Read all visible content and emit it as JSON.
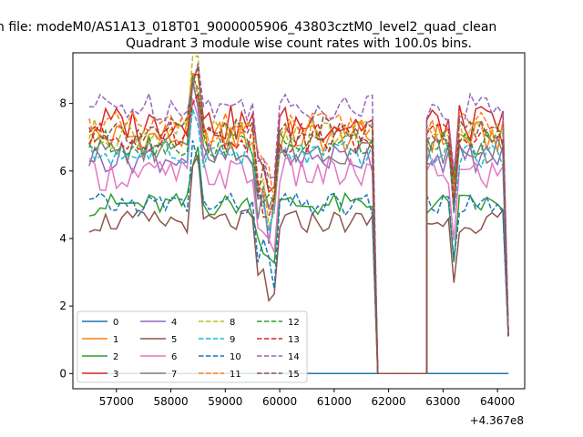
{
  "figure": {
    "suptitle": "n file: modeM0/AS1A13_018T01_9000005906_43803cztM0_level2_quad_clean",
    "title": "Quadrant 3 module wise count rates with 100.0s bins.",
    "offset_label": "+4.367e8"
  },
  "chart_data": {
    "type": "line",
    "title": "Quadrant 3 module wise count rates with 100.0s bins.",
    "xlabel": "",
    "ylabel": "",
    "x_offset": 436700000,
    "xlim": [
      56200,
      64500
    ],
    "ylim": [
      -0.45,
      9.5
    ],
    "xticks": [
      57000,
      58000,
      59000,
      60000,
      61000,
      62000,
      63000,
      64000
    ],
    "yticks": [
      0,
      2,
      4,
      6,
      8
    ],
    "grid": false,
    "legend_position": "lower-left",
    "segments": [
      [
        56500,
        61800
      ],
      [
        61800,
        62700
      ],
      [
        62700,
        64200
      ]
    ],
    "series": [
      {
        "name": "0",
        "color": "#1f77b4",
        "dash": "solid",
        "level": 0.0,
        "jitter": 0.0
      },
      {
        "name": "1",
        "color": "#ff7f0e",
        "dash": "solid",
        "level": 7.0,
        "jitter": 0.5
      },
      {
        "name": "2",
        "color": "#2ca02c",
        "dash": "solid",
        "level": 5.0,
        "jitter": 0.35
      },
      {
        "name": "3",
        "color": "#d62728",
        "dash": "solid",
        "level": 7.4,
        "jitter": 0.55
      },
      {
        "name": "4",
        "color": "#9467bd",
        "dash": "solid",
        "level": 6.4,
        "jitter": 0.45
      },
      {
        "name": "5",
        "color": "#8c564b",
        "dash": "solid",
        "level": 4.5,
        "jitter": 0.35
      },
      {
        "name": "6",
        "color": "#e377c2",
        "dash": "solid",
        "level": 5.9,
        "jitter": 0.5
      },
      {
        "name": "7",
        "color": "#7f7f7f",
        "dash": "solid",
        "level": 6.6,
        "jitter": 0.4
      },
      {
        "name": "8",
        "color": "#bcbd22",
        "dash": "dashed",
        "level": 7.1,
        "jitter": 0.45
      },
      {
        "name": "9",
        "color": "#17becf",
        "dash": "dashed",
        "level": 6.5,
        "jitter": 0.4
      },
      {
        "name": "10",
        "color": "#1f77b4",
        "dash": "dashed",
        "level": 5.0,
        "jitter": 0.35
      },
      {
        "name": "11",
        "color": "#ff7f0e",
        "dash": "dashed",
        "level": 7.3,
        "jitter": 0.45
      },
      {
        "name": "12",
        "color": "#2ca02c",
        "dash": "dashed",
        "level": 6.8,
        "jitter": 0.4
      },
      {
        "name": "13",
        "color": "#d62728",
        "dash": "dashed",
        "level": 7.0,
        "jitter": 0.45
      },
      {
        "name": "14",
        "color": "#9467bd",
        "dash": "dashed",
        "level": 7.9,
        "jitter": 0.45
      },
      {
        "name": "15",
        "color": "#8c564b",
        "dash": "dashed",
        "level": 7.2,
        "jitter": 0.4
      }
    ]
  }
}
